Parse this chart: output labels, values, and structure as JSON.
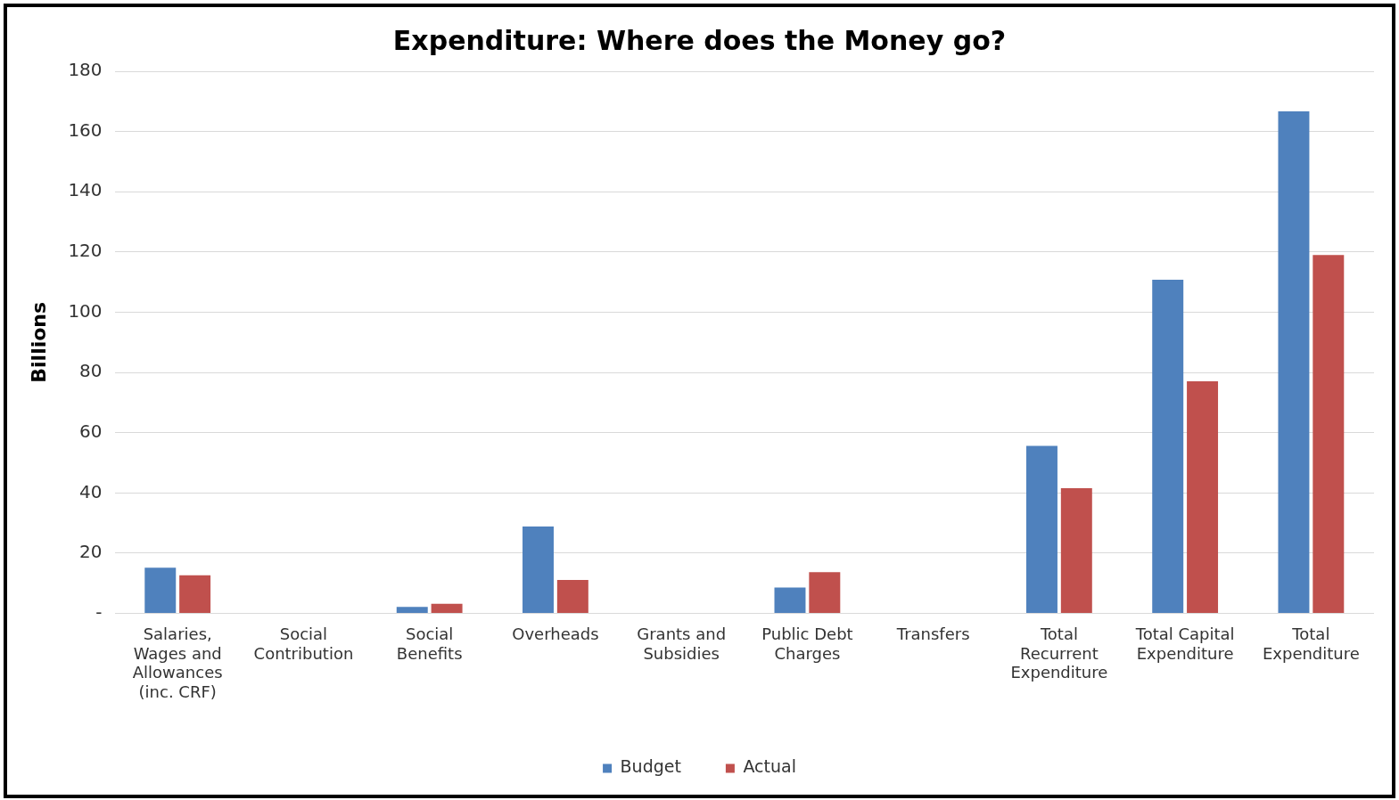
{
  "chart_data": {
    "type": "bar",
    "title": "Expenditure: Where does the Money go?",
    "ylabel": "Billions",
    "categories": [
      "Salaries, Wages and Allowances (inc. CRF)",
      "Social Contribution",
      "Social Benefits",
      "Overheads",
      "Grants and Subsidies",
      "Public Debt Charges",
      "Transfers",
      "Total Recurrent Expenditure",
      "Total Capital Expenditure",
      "Total Expenditure"
    ],
    "series": [
      {
        "name": "Budget",
        "color": "#4f81bd",
        "values": [
          15.2,
          0,
          2.2,
          28.9,
          0,
          8.6,
          0,
          55.6,
          110.8,
          166.7
        ]
      },
      {
        "name": "Actual",
        "color": "#c0504d",
        "values": [
          12.7,
          0,
          3.2,
          11.1,
          0,
          13.7,
          0,
          41.6,
          77.1,
          119
        ]
      }
    ],
    "ylim": [
      0,
      180
    ],
    "yticks": [
      {
        "value": 0,
        "label": "-"
      },
      20,
      40,
      60,
      80,
      100,
      120,
      140,
      160,
      180
    ],
    "grid": "y",
    "legend": "bottom"
  }
}
